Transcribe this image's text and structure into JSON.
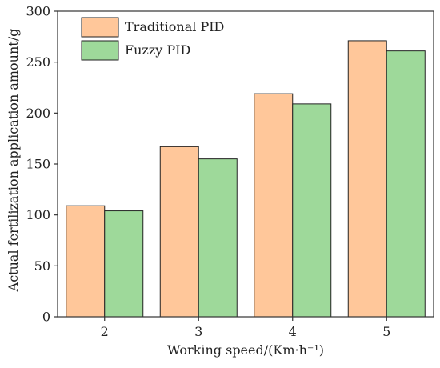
{
  "chart_data": {
    "type": "bar",
    "categories": [
      "2",
      "3",
      "4",
      "5"
    ],
    "series": [
      {
        "name": "Traditional PID",
        "values": [
          109,
          167,
          219,
          271
        ],
        "color": "#FFC79A"
      },
      {
        "name": "Fuzzy PID",
        "values": [
          104,
          155,
          209,
          261
        ],
        "color": "#9ED99A"
      }
    ],
    "xlabel": "Working speed/(Km·h⁻¹)",
    "ylabel": "Actual fertilization application amount/g",
    "ylim": [
      0,
      300
    ],
    "yticks": [
      0,
      50,
      100,
      150,
      200,
      250,
      300
    ],
    "legend_position": "top-left",
    "grid": false
  }
}
